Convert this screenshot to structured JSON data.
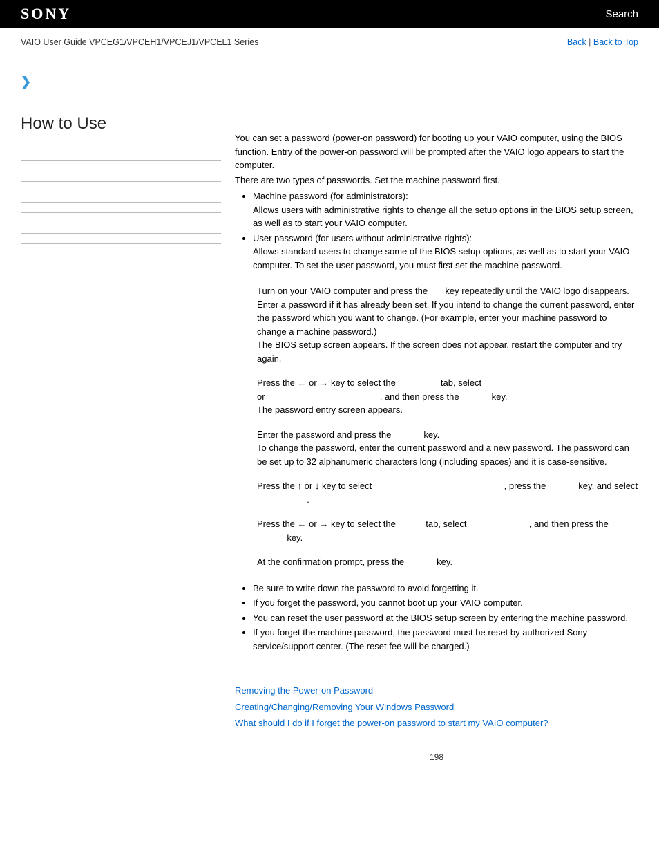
{
  "header": {
    "logo_text": "SONY",
    "search_label": "Search"
  },
  "subheader": {
    "breadcrumb": "VAIO User Guide VPCEG1/VPCEH1/VPCEJ1/VPCEL1 Series",
    "back_label": "Back",
    "back_to_top_label": "Back to Top",
    "separator": " | "
  },
  "sidebar": {
    "title": "How to Use",
    "row_count": 10
  },
  "content": {
    "intro_p1": "You can set a password (power-on password) for booting up your VAIO computer, using the BIOS function. Entry of the power-on password will be prompted after the VAIO logo appears to start the computer.",
    "intro_p2": "There are two types of passwords. Set the machine password first.",
    "pw_types": [
      {
        "title": "Machine password (for administrators):",
        "body": "Allows users with administrative rights to change all the setup options in the BIOS setup screen, as well as to start your VAIO computer."
      },
      {
        "title": "User password (for users without administrative rights):",
        "body": "Allows standard users to change some of the BIOS setup options, as well as to start your VAIO computer. To set the user password, you must first set the machine password."
      }
    ],
    "steps": {
      "s1": {
        "a": "Turn on your VAIO computer and press the ",
        "b": " key repeatedly until the VAIO logo disappears.",
        "c": "Enter a password if it has already been set. If you intend to change the current password, enter the password which you want to change. (For example, enter your machine password to change a machine password.)",
        "d": "The BIOS setup screen appears. If the screen does not appear, restart the computer and try again."
      },
      "s2": {
        "a": "Press the ",
        "b": " or ",
        "c": " key to select the ",
        "d": " tab, select ",
        "e": " or ",
        "f": ", and then press the ",
        "g": " key.",
        "h": "The password entry screen appears."
      },
      "s3": {
        "a": "Enter the password and press the ",
        "b": " key.",
        "c": "To change the password, enter the current password and a new password. The password can be set up to 32 alphanumeric characters long (including spaces) and it is case-sensitive."
      },
      "s4": {
        "a": "Press the ",
        "b": " or ",
        "c": " key to select ",
        "d": ", press the ",
        "e": " key, and select ",
        "f": "."
      },
      "s5": {
        "a": "Press the ",
        "b": " or ",
        "c": " key to select the ",
        "d": " tab, select ",
        "e": ", and then press the ",
        "f": " key."
      },
      "s6": {
        "a": "At the confirmation prompt, press the ",
        "b": " key."
      }
    },
    "notes": [
      "Be sure to write down the password to avoid forgetting it.",
      "If you forget the password, you cannot boot up your VAIO computer.",
      "You can reset the user password at the BIOS setup screen by entering the machine password.",
      "If you forget the machine password, the password must be reset by authorized Sony service/support center. (The reset fee will be charged.)"
    ],
    "related": [
      "Removing the Power-on Password",
      "Creating/Changing/Removing Your Windows Password",
      "What should I do if I forget the power-on password to start my VAIO computer?"
    ],
    "page_number": "198"
  },
  "glyphs": {
    "left": "←",
    "right": "→",
    "up": "↑",
    "down": "↓"
  }
}
